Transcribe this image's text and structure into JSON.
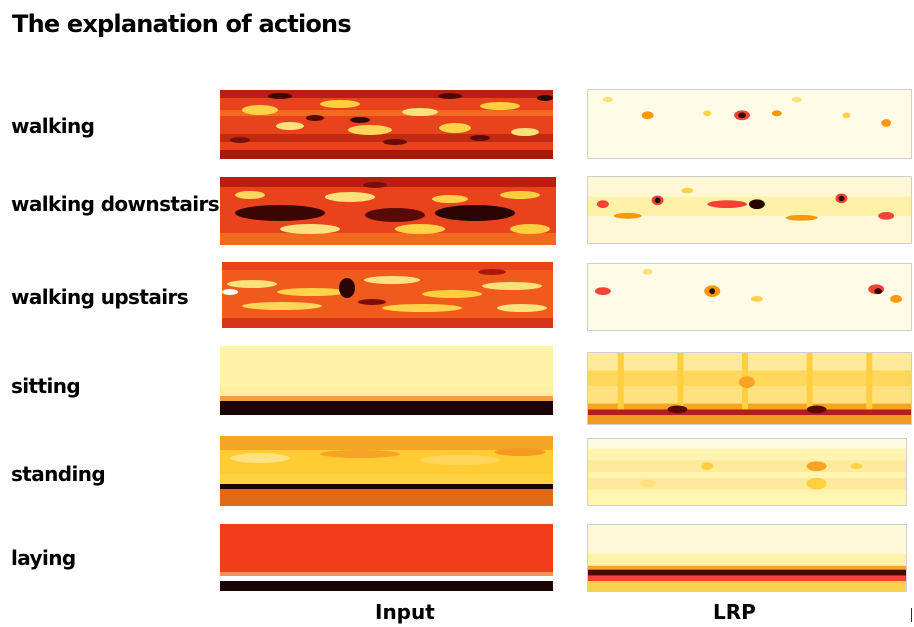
{
  "title": "The explanation of actions",
  "rows": [
    {
      "label": "walking"
    },
    {
      "label": "walking downstairs"
    },
    {
      "label": "walking upstairs"
    },
    {
      "label": "sitting"
    },
    {
      "label": "standing"
    },
    {
      "label": "laying"
    }
  ],
  "columns": {
    "input": "Input",
    "lrp": "LRP"
  },
  "colors": {
    "colormap": [
      "#ffffff",
      "#ffffcc",
      "#ffeb3b",
      "#ff9800",
      "#f44336",
      "#b71c1c",
      "#000000"
    ],
    "colormap_name": "hot (reversed)"
  }
}
